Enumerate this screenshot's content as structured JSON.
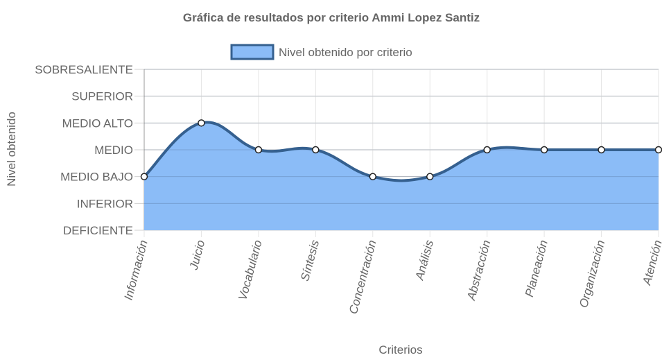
{
  "chart_data": {
    "type": "area",
    "title": "Gráfica de resultados por criterio Ammi Lopez Santiz",
    "xlabel": "Criterios",
    "ylabel": "Nivel obtenido",
    "y_levels": [
      "DEFICIENTE",
      "INFERIOR",
      "MEDIO BAJO",
      "MEDIO",
      "MEDIO ALTO",
      "SUPERIOR",
      "SOBRESALIENTE"
    ],
    "categories": [
      "Información",
      "Juicio",
      "Vocabulario",
      "Síntesis",
      "Concentración",
      "Análisis",
      "Abstracción",
      "Planeación",
      "Organización",
      "Atención"
    ],
    "series": [
      {
        "name": "Nivel obtenido por criterio",
        "values": [
          "MEDIO BAJO",
          "MEDIO ALTO",
          "MEDIO",
          "MEDIO",
          "MEDIO BAJO",
          "MEDIO BAJO",
          "MEDIO",
          "MEDIO",
          "MEDIO",
          "MEDIO"
        ]
      }
    ],
    "grid": true,
    "legend": "top-center",
    "colors": {
      "fill": "#8bbcf7",
      "line": "#35608f",
      "point_fill": "#ffffff",
      "point_stroke": "#222222",
      "grid": "#e5e5e5",
      "axis": "#999999"
    }
  }
}
